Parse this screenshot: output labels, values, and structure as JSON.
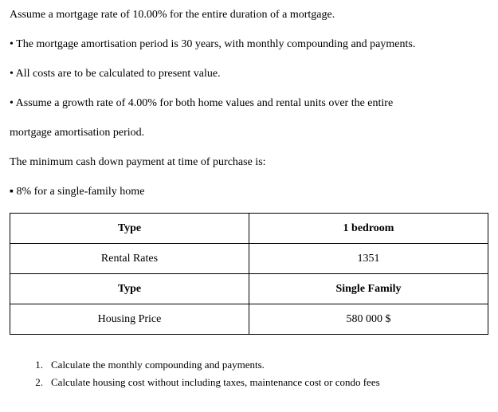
{
  "intro": "Assume a mortgage rate of 10.00% for the entire duration of a mortgage.",
  "bullets": {
    "b1": "• The mortgage amortisation period is 30 years, with monthly compounding and payments.",
    "b2": "• All costs are to be calculated to present value.",
    "b3a": "• Assume a growth rate of 4.00% for both home values and rental units over the entire",
    "b3b": "mortgage amortisation period.",
    "b4": "The minimum cash down payment at time of purchase is:",
    "b5": "▪ 8% for a single-family home"
  },
  "table": {
    "rows": [
      {
        "left": "Type",
        "right": "1 bedroom",
        "leftBold": true,
        "rightBold": true
      },
      {
        "left": "Rental Rates",
        "right": "1351",
        "leftBold": false,
        "rightBold": false
      },
      {
        "left": "Type",
        "right": "Single Family",
        "leftBold": true,
        "rightBold": true
      },
      {
        "left": "Housing Price",
        "right": "580 000 $",
        "leftBold": false,
        "rightBold": false
      }
    ],
    "border_color": "#000000",
    "background_color": "#ffffff",
    "font_size": 14
  },
  "questions": {
    "q1num": "1.",
    "q1": "Calculate the monthly compounding and payments.",
    "q2num": "2.",
    "q2": "Calculate housing cost without including taxes, maintenance cost or condo fees"
  },
  "style": {
    "font_family": "Times New Roman",
    "text_color": "#000000",
    "background_color": "#ffffff",
    "base_font_size": 14
  }
}
